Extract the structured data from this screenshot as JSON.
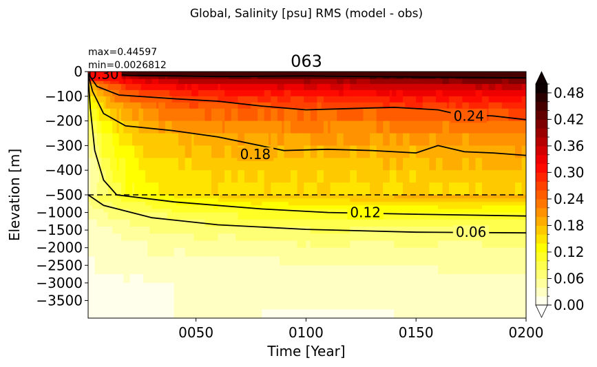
{
  "figure": {
    "suptitle": "Global, Salinity [psu] RMS (model - obs)",
    "title": "063",
    "stats": {
      "max": "max=0.44597",
      "min": "min=0.0026812"
    }
  },
  "chart_data": {
    "type": "heatmap",
    "xlabel": "Time [Year]",
    "ylabel": "Elevation [m]",
    "xlim": [
      1,
      200
    ],
    "x_ticks": [
      50,
      100,
      150,
      200
    ],
    "x_tick_labels": [
      "0050",
      "0100",
      "0150",
      "0200"
    ],
    "y_tick_labels_upper": [
      "0",
      "−100",
      "−200",
      "−300",
      "−400",
      "−500"
    ],
    "y_tick_labels_lower": [
      "−1000",
      "−1500",
      "−2000",
      "−2500",
      "−3000",
      "−3500"
    ],
    "y_axis": {
      "upper_range": [
        -500,
        0
      ],
      "lower_range": [
        -4000,
        -500
      ],
      "split_at": -500,
      "split_line": "dashed"
    },
    "colorbar": {
      "vmin": 0.0,
      "vmax": 0.5,
      "levels_step": 0.02,
      "extend": "both",
      "colormap": "hot_r",
      "tick_values": [
        0.0,
        0.06,
        0.12,
        0.18,
        0.24,
        0.3,
        0.36,
        0.42,
        0.48
      ],
      "tick_labels": [
        "0.00",
        "0.06",
        "0.12",
        "0.18",
        "0.24",
        "0.30",
        "0.36",
        "0.42",
        "0.48"
      ]
    },
    "contour_labels": [
      "0.30",
      "0.24",
      "0.18",
      "0.12",
      "0.06"
    ],
    "contours": [
      {
        "level": 0.3,
        "label_text": "0.30",
        "label_at": [
          8,
          -10
        ],
        "points": [
          [
            1,
            -5
          ],
          [
            20,
            -15
          ],
          [
            60,
            -20
          ],
          [
            100,
            -18
          ],
          [
            150,
            -22
          ],
          [
            200,
            -25
          ]
        ]
      },
      {
        "level": 0.24,
        "label_text": "0.24",
        "label_at": [
          174,
          -180
        ],
        "points": [
          [
            1,
            -8
          ],
          [
            5,
            -60
          ],
          [
            15,
            -95
          ],
          [
            40,
            -110
          ],
          [
            60,
            -120
          ],
          [
            80,
            -140
          ],
          [
            100,
            -155
          ],
          [
            120,
            -150
          ],
          [
            140,
            -145
          ],
          [
            160,
            -155
          ],
          [
            170,
            -175
          ],
          [
            185,
            -180
          ],
          [
            200,
            -195
          ]
        ]
      },
      {
        "level": 0.18,
        "label_text": "0.18",
        "label_at": [
          77,
          -335
        ],
        "points": [
          [
            1,
            -10
          ],
          [
            3,
            -80
          ],
          [
            8,
            -170
          ],
          [
            18,
            -220
          ],
          [
            40,
            -240
          ],
          [
            60,
            -265
          ],
          [
            90,
            -320
          ],
          [
            110,
            -315
          ],
          [
            130,
            -320
          ],
          [
            150,
            -330
          ],
          [
            160,
            -300
          ],
          [
            172,
            -325
          ],
          [
            185,
            -330
          ],
          [
            200,
            -340
          ]
        ]
      },
      {
        "level": 0.12,
        "label_text": "0.12",
        "label_at": [
          127,
          -1000
        ],
        "points": [
          [
            1,
            -20
          ],
          [
            2,
            -150
          ],
          [
            4,
            -320
          ],
          [
            8,
            -440
          ],
          [
            14,
            -500
          ],
          [
            40,
            -700
          ],
          [
            80,
            -900
          ],
          [
            110,
            -1000
          ],
          [
            150,
            -1050
          ],
          [
            200,
            -1100
          ]
        ]
      },
      {
        "level": 0.06,
        "label_text": "0.06",
        "label_at": [
          175,
          -1560
        ],
        "points": [
          [
            1,
            -500
          ],
          [
            8,
            -800
          ],
          [
            30,
            -1150
          ],
          [
            60,
            -1350
          ],
          [
            100,
            -1480
          ],
          [
            150,
            -1560
          ],
          [
            200,
            -1580
          ]
        ]
      }
    ],
    "field_model": {
      "description": "RMS decreases with depth, increases with time in upper 1000 m; near-surface band above 0.30",
      "surface_max": 0.44597,
      "field_min": 0.0026812
    }
  }
}
